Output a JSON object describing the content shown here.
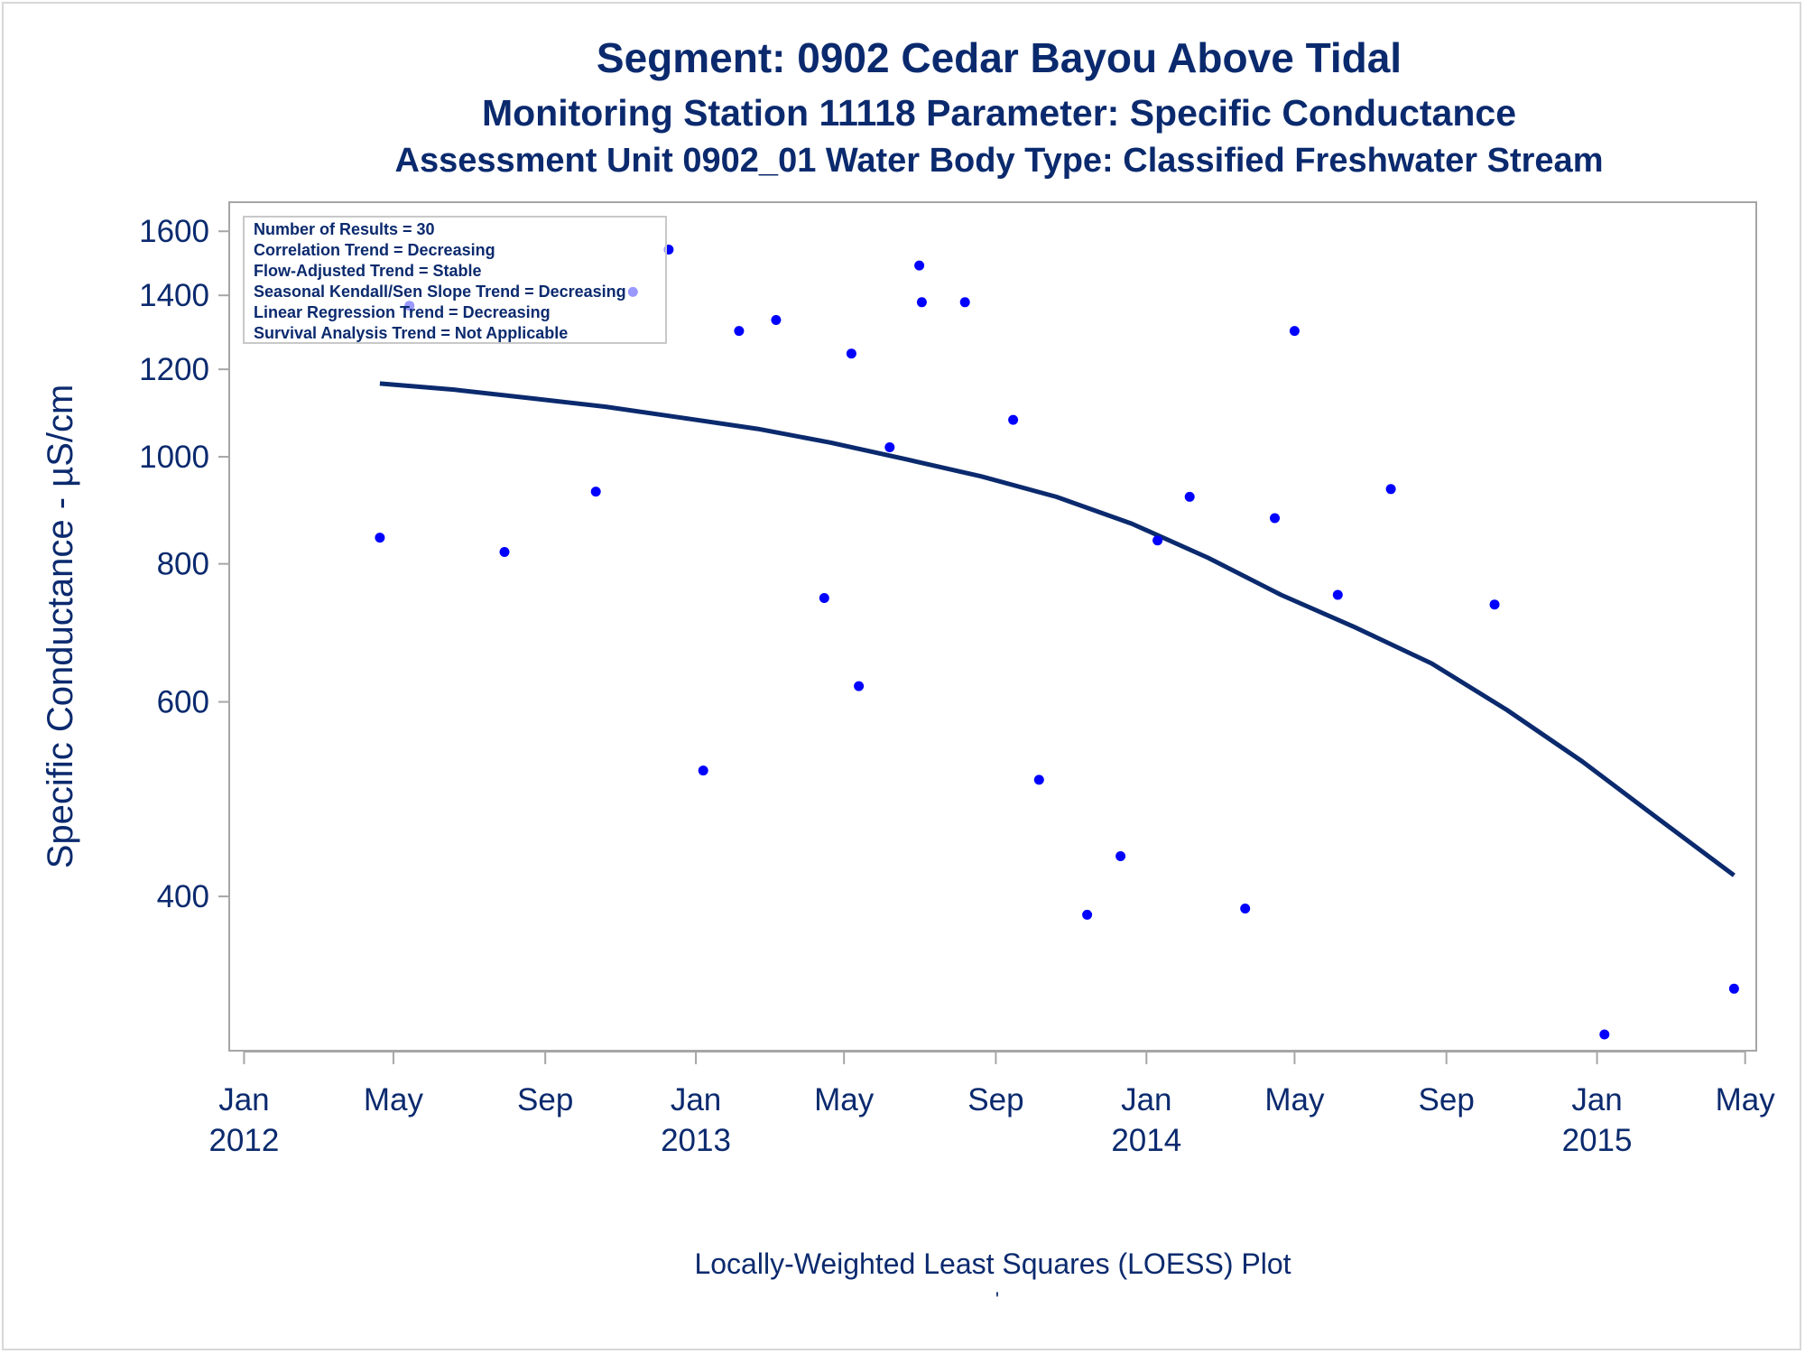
{
  "title": "Segment: 0902  Cedar Bayou Above Tidal",
  "subtitle": "Monitoring Station 11118 Parameter: Specific Conductance",
  "subtitle2": "Assessment Unit 0902_01   Water Body Type: Classified Freshwater Stream",
  "footnote": "Locally-Weighted Least Squares (LOESS) Plot",
  "footnote_mark": "'",
  "colors": {
    "text": "#0b2a6e",
    "points": "#0000ff",
    "curve": "#0b2a6e",
    "frame": "#a6a6a6"
  },
  "chart_data": {
    "type": "scatter",
    "ylabel": "Specific Conductance -  µS/cm",
    "xlabel": "",
    "y_scale": "log",
    "grid": false,
    "xlim": [
      "2011-12-20",
      "2015-05-10"
    ],
    "ylim": [
      290,
      1700
    ],
    "x_ticks": [
      {
        "date": "2012-01-01",
        "label": [
          "Jan",
          "2012"
        ]
      },
      {
        "date": "2012-05-01",
        "label": [
          "May",
          ""
        ]
      },
      {
        "date": "2012-09-01",
        "label": [
          "Sep",
          ""
        ]
      },
      {
        "date": "2013-01-01",
        "label": [
          "Jan",
          "2013"
        ]
      },
      {
        "date": "2013-05-01",
        "label": [
          "May",
          ""
        ]
      },
      {
        "date": "2013-09-01",
        "label": [
          "Sep",
          ""
        ]
      },
      {
        "date": "2014-01-01",
        "label": [
          "Jan",
          "2014"
        ]
      },
      {
        "date": "2014-05-01",
        "label": [
          "May",
          ""
        ]
      },
      {
        "date": "2014-09-01",
        "label": [
          "Sep",
          ""
        ]
      },
      {
        "date": "2015-01-01",
        "label": [
          "Jan",
          "2015"
        ]
      },
      {
        "date": "2015-05-01",
        "label": [
          "May",
          ""
        ]
      }
    ],
    "y_ticks": [
      400,
      600,
      800,
      1000,
      1200,
      1400,
      1600
    ],
    "legend": {
      "placement": "top-left",
      "lines": [
        "Number of Results = 30",
        "Correlation Trend = Decreasing",
        "Flow-Adjusted Trend = Stable",
        "Seasonal Kendall/Sen Slope Trend = Decreasing",
        "Linear Regression Trend = Decreasing",
        "Survival Analysis Trend = Not Applicable"
      ]
    },
    "points": [
      {
        "x": "2012-04-20",
        "y": 845
      },
      {
        "x": "2012-05-14",
        "y": 1370
      },
      {
        "x": "2012-07-30",
        "y": 820
      },
      {
        "x": "2012-10-12",
        "y": 930
      },
      {
        "x": "2012-11-11",
        "y": 1410
      },
      {
        "x": "2012-12-10",
        "y": 1540
      },
      {
        "x": "2013-01-07",
        "y": 520
      },
      {
        "x": "2013-02-05",
        "y": 1300
      },
      {
        "x": "2013-03-07",
        "y": 1330
      },
      {
        "x": "2013-04-15",
        "y": 745
      },
      {
        "x": "2013-05-07",
        "y": 1240
      },
      {
        "x": "2013-05-13",
        "y": 620
      },
      {
        "x": "2013-06-07",
        "y": 1020
      },
      {
        "x": "2013-07-01",
        "y": 1490
      },
      {
        "x": "2013-07-03",
        "y": 1380
      },
      {
        "x": "2013-08-07",
        "y": 1380
      },
      {
        "x": "2013-09-15",
        "y": 1080
      },
      {
        "x": "2013-10-06",
        "y": 510
      },
      {
        "x": "2013-11-14",
        "y": 385
      },
      {
        "x": "2013-12-11",
        "y": 435
      },
      {
        "x": "2014-01-10",
        "y": 840
      },
      {
        "x": "2014-02-05",
        "y": 920
      },
      {
        "x": "2014-03-22",
        "y": 390
      },
      {
        "x": "2014-04-15",
        "y": 880
      },
      {
        "x": "2014-05-01",
        "y": 1300
      },
      {
        "x": "2014-06-05",
        "y": 750
      },
      {
        "x": "2014-07-18",
        "y": 935
      },
      {
        "x": "2014-10-10",
        "y": 735
      },
      {
        "x": "2015-01-07",
        "y": 300
      },
      {
        "x": "2015-04-22",
        "y": 330
      }
    ],
    "loess_curve": [
      {
        "x": "2012-04-20",
        "y": 1165
      },
      {
        "x": "2012-06-20",
        "y": 1150
      },
      {
        "x": "2012-08-20",
        "y": 1130
      },
      {
        "x": "2012-10-20",
        "y": 1110
      },
      {
        "x": "2012-12-20",
        "y": 1085
      },
      {
        "x": "2013-02-20",
        "y": 1060
      },
      {
        "x": "2013-04-20",
        "y": 1030
      },
      {
        "x": "2013-06-20",
        "y": 995
      },
      {
        "x": "2013-08-20",
        "y": 960
      },
      {
        "x": "2013-10-20",
        "y": 920
      },
      {
        "x": "2013-12-20",
        "y": 870
      },
      {
        "x": "2014-02-20",
        "y": 810
      },
      {
        "x": "2014-04-20",
        "y": 750
      },
      {
        "x": "2014-06-20",
        "y": 700
      },
      {
        "x": "2014-08-20",
        "y": 650
      },
      {
        "x": "2014-10-20",
        "y": 590
      },
      {
        "x": "2014-12-20",
        "y": 530
      },
      {
        "x": "2015-02-20",
        "y": 470
      },
      {
        "x": "2015-04-22",
        "y": 418
      }
    ]
  }
}
